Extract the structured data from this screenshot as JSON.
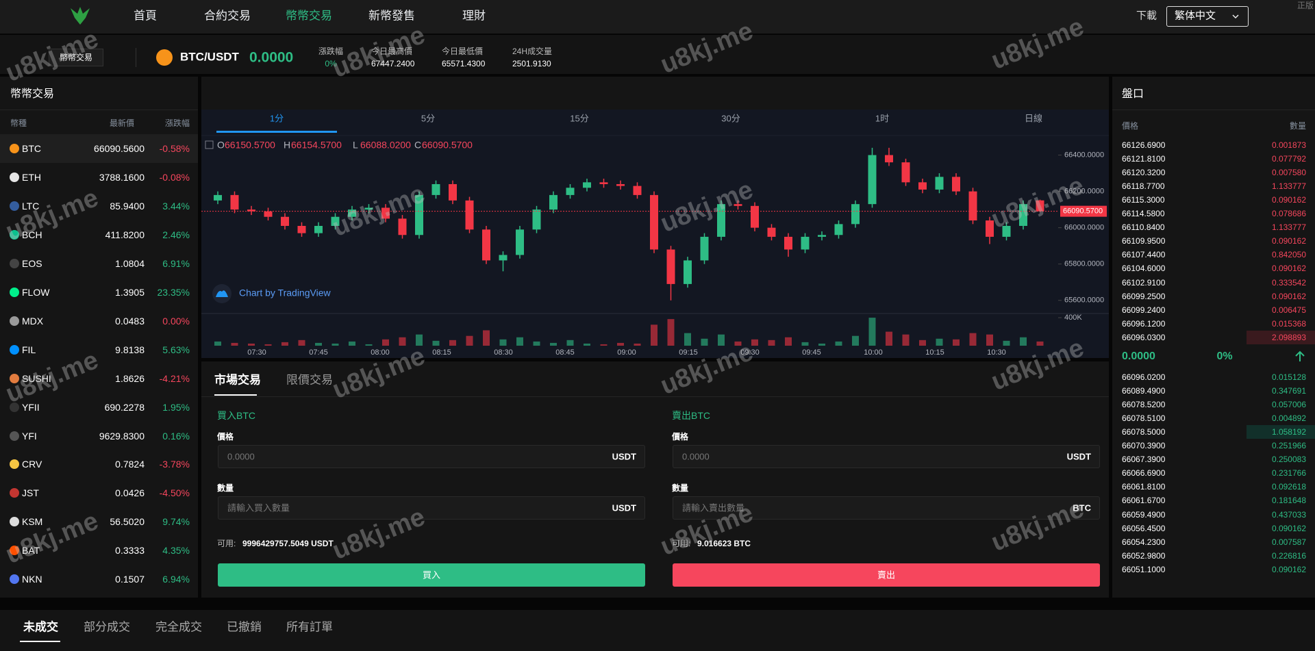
{
  "nav": {
    "items": [
      "首頁",
      "合約交易",
      "幣幣交易",
      "新幣發售",
      "理財"
    ],
    "active": 2,
    "download": "下載",
    "language": "繁体中文",
    "corner": "正版"
  },
  "watermark": "u8kj.me",
  "ticker": {
    "mode": "幣幣交易",
    "pair": "BTC/USDT",
    "price": "0.0000",
    "stats": [
      {
        "label": "漲跌幅",
        "value": "0%"
      },
      {
        "label": "今日最高價",
        "value": "67447.2400"
      },
      {
        "label": "今日最低價",
        "value": "65571.4300"
      },
      {
        "label": "24H成交量",
        "value": "2501.9130"
      }
    ]
  },
  "market_list": {
    "title": "幣幣交易",
    "headers": [
      "幣種",
      "最新價",
      "漲跌幅"
    ],
    "rows": [
      {
        "name": "BTC",
        "price": "66090.5600",
        "change": "-0.58%",
        "icon_color": "#f7931a"
      },
      {
        "name": "ETH",
        "price": "3788.1600",
        "change": "-0.08%",
        "icon_color": "#e6e6e6"
      },
      {
        "name": "LTC",
        "price": "85.9400",
        "change": "3.44%",
        "icon_color": "#345d9d"
      },
      {
        "name": "BCH",
        "price": "411.8200",
        "change": "2.46%",
        "icon_color": "#0ac18e"
      },
      {
        "name": "EOS",
        "price": "1.0804",
        "change": "6.91%",
        "icon_color": "#444444"
      },
      {
        "name": "FLOW",
        "price": "1.3905",
        "change": "23.35%",
        "icon_color": "#00ef8b"
      },
      {
        "name": "MDX",
        "price": "0.0483",
        "change": "0.00%",
        "icon_color": "#9a9a9a"
      },
      {
        "name": "FIL",
        "price": "9.8138",
        "change": "5.63%",
        "icon_color": "#0090ff"
      },
      {
        "name": "SUSHI",
        "price": "1.8626",
        "change": "-4.21%",
        "icon_color": "#e27c3f"
      },
      {
        "name": "YFII",
        "price": "690.2278",
        "change": "1.95%",
        "icon_color": "#333333"
      },
      {
        "name": "YFI",
        "price": "9629.8300",
        "change": "0.16%",
        "icon_color": "#555555"
      },
      {
        "name": "CRV",
        "price": "0.7824",
        "change": "-3.78%",
        "icon_color": "#f5c542"
      },
      {
        "name": "JST",
        "price": "0.0426",
        "change": "-4.50%",
        "icon_color": "#c23631"
      },
      {
        "name": "KSM",
        "price": "56.5020",
        "change": "9.74%",
        "icon_color": "#dddddd"
      },
      {
        "name": "BAT",
        "price": "0.3333",
        "change": "4.35%",
        "icon_color": "#ff5000"
      },
      {
        "name": "NKN",
        "price": "0.1507",
        "change": "6.94%",
        "icon_color": "#5276f0"
      }
    ]
  },
  "chart_data": {
    "type": "candlestick",
    "intervals": [
      "1分",
      "5分",
      "15分",
      "30分",
      "1时",
      "日線"
    ],
    "active_interval": 0,
    "ohlc_legend": [
      {
        "key": "O",
        "text": "66150.5700"
      },
      {
        "key": "H",
        "text": "66154.5700"
      },
      {
        "key": "L",
        "text": "66088.0200"
      },
      {
        "key": "C",
        "text": "66090.5700"
      }
    ],
    "up_color": "#2ebd85",
    "down_color": "#f23645",
    "ylim": [
      65520,
      66500
    ],
    "yticks": [
      {
        "value": 65600,
        "label": "65600.0000"
      },
      {
        "value": 65800,
        "label": "65800.0000"
      },
      {
        "value": 66000,
        "label": "66000.0000"
      },
      {
        "value": 66200,
        "label": "66200.0000"
      },
      {
        "value": 66400,
        "label": "66400.0000"
      }
    ],
    "last_price": {
      "value": 66090.57,
      "label": "66090.5700"
    },
    "candles": [
      [
        66150,
        66200,
        66130,
        66180
      ],
      [
        66180,
        66200,
        66080,
        66100
      ],
      [
        66100,
        66120,
        66070,
        66090
      ],
      [
        66090,
        66110,
        66040,
        66060
      ],
      [
        66060,
        66080,
        65990,
        66010
      ],
      [
        66010,
        66030,
        65950,
        65970
      ],
      [
        65970,
        66030,
        65950,
        66010
      ],
      [
        66010,
        66080,
        65990,
        66060
      ],
      [
        66060,
        66120,
        66040,
        66100
      ],
      [
        66100,
        66130,
        66080,
        66110
      ],
      [
        66110,
        66130,
        66030,
        66050
      ],
      [
        66050,
        66070,
        65940,
        65960
      ],
      [
        65960,
        66200,
        65940,
        66180
      ],
      [
        66180,
        66260,
        66160,
        66240
      ],
      [
        66240,
        66260,
        66130,
        66150
      ],
      [
        66150,
        66170,
        65970,
        65990
      ],
      [
        65990,
        66010,
        65800,
        65820
      ],
      [
        65820,
        65870,
        65760,
        65850
      ],
      [
        65850,
        66010,
        65830,
        65990
      ],
      [
        65990,
        66120,
        65970,
        66100
      ],
      [
        66100,
        66200,
        66080,
        66180
      ],
      [
        66180,
        66240,
        66160,
        66220
      ],
      [
        66220,
        66270,
        66200,
        66250
      ],
      [
        66250,
        66270,
        66220,
        66240
      ],
      [
        66240,
        66260,
        66210,
        66230
      ],
      [
        66230,
        66250,
        66160,
        66180
      ],
      [
        66180,
        66200,
        65860,
        65880
      ],
      [
        65880,
        65900,
        65600,
        65690
      ],
      [
        65690,
        65840,
        65670,
        65820
      ],
      [
        65820,
        65970,
        65800,
        65950
      ],
      [
        65950,
        66150,
        65930,
        66130
      ],
      [
        66130,
        66150,
        66100,
        66120
      ],
      [
        66120,
        66140,
        65980,
        66000
      ],
      [
        66000,
        66020,
        65930,
        65950
      ],
      [
        65950,
        65970,
        65840,
        65880
      ],
      [
        65880,
        65970,
        65860,
        65950
      ],
      [
        65950,
        65980,
        65930,
        65960
      ],
      [
        65960,
        66040,
        65940,
        66020
      ],
      [
        66020,
        66150,
        66000,
        66130
      ],
      [
        66130,
        66440,
        66110,
        66400
      ],
      [
        66400,
        66440,
        66340,
        66360
      ],
      [
        66360,
        66380,
        66230,
        66250
      ],
      [
        66250,
        66270,
        66190,
        66210
      ],
      [
        66210,
        66300,
        66190,
        66280
      ],
      [
        66280,
        66300,
        66180,
        66200
      ],
      [
        66200,
        66220,
        66020,
        66040
      ],
      [
        66040,
        66060,
        65910,
        65950
      ],
      [
        65950,
        66030,
        65930,
        66010
      ],
      [
        66010,
        66150,
        65990,
        66130
      ],
      [
        66150.57,
        66154.57,
        66088.02,
        66090.57
      ]
    ],
    "volume": [
      60000,
      40000,
      30000,
      20000,
      50000,
      80000,
      40000,
      30000,
      60000,
      20000,
      90000,
      120000,
      160000,
      70000,
      80000,
      140000,
      220000,
      90000,
      120000,
      60000,
      40000,
      80000,
      30000,
      20000,
      40000,
      30000,
      300000,
      380000,
      180000,
      100000,
      160000,
      60000,
      90000,
      80000,
      120000,
      50000,
      30000,
      60000,
      140000,
      400000,
      200000,
      160000,
      80000,
      100000,
      90000,
      180000,
      160000,
      70000,
      120000,
      60000
    ],
    "volume_ylim": [
      0,
      440000
    ],
    "volume_yticks": [
      {
        "value": 400000,
        "label": "400K"
      }
    ],
    "time_labels": [
      "07:30",
      "07:45",
      "08:00",
      "08:15",
      "08:30",
      "08:45",
      "09:00",
      "09:15",
      "09:30",
      "09:45",
      "10:00",
      "10:15",
      "10:30"
    ],
    "credit": "Chart by TradingView"
  },
  "order_form": {
    "tabs": [
      "市場交易",
      "限價交易"
    ],
    "active_tab": 0,
    "buy": {
      "title": "買入BTC",
      "price_label": "價格",
      "price_placeholder": "0.0000",
      "price_unit": "USDT",
      "amount_label": "數量",
      "amount_placeholder": "請輸入買入數量",
      "amount_unit": "USDT",
      "available_label": "可用:",
      "available": "9996429757.5049 USDT",
      "button": "買入"
    },
    "sell": {
      "title": "賣出BTC",
      "price_label": "價格",
      "price_placeholder": "0.0000",
      "price_unit": "USDT",
      "amount_label": "數量",
      "amount_placeholder": "請輸入賣出數量",
      "amount_unit": "BTC",
      "available_label": "可用:",
      "available": "9.016623 BTC",
      "button": "賣出"
    }
  },
  "order_book": {
    "title": "盤口",
    "headers": [
      "價格",
      "數量"
    ],
    "asks": [
      [
        "66126.6900",
        "0.001873"
      ],
      [
        "66121.8100",
        "0.077792"
      ],
      [
        "66120.3200",
        "0.007580"
      ],
      [
        "66118.7700",
        "1.133777"
      ],
      [
        "66115.3000",
        "0.090162"
      ],
      [
        "66114.5800",
        "0.078686"
      ],
      [
        "66110.8400",
        "1.133777"
      ],
      [
        "66109.9500",
        "0.090162"
      ],
      [
        "66107.4400",
        "0.842050"
      ],
      [
        "66104.6000",
        "0.090162"
      ],
      [
        "66102.9100",
        "0.333542"
      ],
      [
        "66099.2500",
        "0.090162"
      ],
      [
        "66099.2400",
        "0.006475"
      ],
      [
        "66096.1200",
        "0.015368"
      ],
      [
        "66096.0300",
        "2.098893"
      ]
    ],
    "ask_highlight": 14,
    "last": "0.0000",
    "change": "0%",
    "bids": [
      [
        "66096.0200",
        "0.015128"
      ],
      [
        "66089.4900",
        "0.347691"
      ],
      [
        "66078.5200",
        "0.057006"
      ],
      [
        "66078.5100",
        "0.004892"
      ],
      [
        "66078.5000",
        "1.058192"
      ],
      [
        "66070.3900",
        "0.251966"
      ],
      [
        "66067.3900",
        "0.250083"
      ],
      [
        "66066.6900",
        "0.231766"
      ],
      [
        "66061.8100",
        "0.092618"
      ],
      [
        "66061.6700",
        "0.181648"
      ],
      [
        "66059.4900",
        "0.437033"
      ],
      [
        "66056.4500",
        "0.090162"
      ],
      [
        "66054.2300",
        "0.007587"
      ],
      [
        "66052.9800",
        "0.226816"
      ],
      [
        "66051.1000",
        "0.090162"
      ]
    ],
    "bid_highlight": 4
  },
  "orders": {
    "tabs": [
      "未成交",
      "部分成交",
      "完全成交",
      "已撤銷",
      "所有訂單"
    ],
    "active": 0
  }
}
